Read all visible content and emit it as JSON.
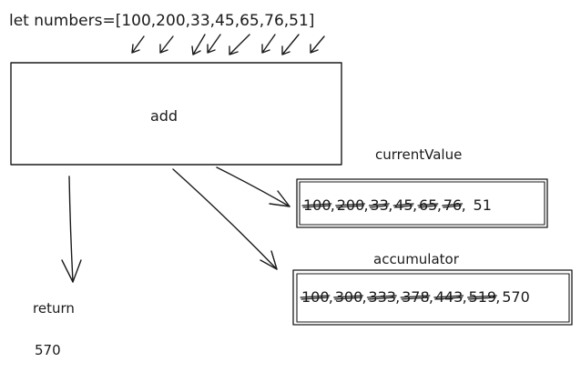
{
  "code_line": "let numbers=[100,200,33,45,65,76,51]",
  "function_label": "add",
  "return_label": "return",
  "return_value": "570",
  "current_value": {
    "title": "currentValue",
    "items": [
      "100",
      "200",
      "33",
      "45",
      "65",
      "76"
    ],
    "last": "51"
  },
  "accumulator": {
    "title": "accumulator",
    "items": [
      "100",
      "300",
      "333",
      "378",
      "443",
      "519"
    ],
    "last": "570"
  }
}
